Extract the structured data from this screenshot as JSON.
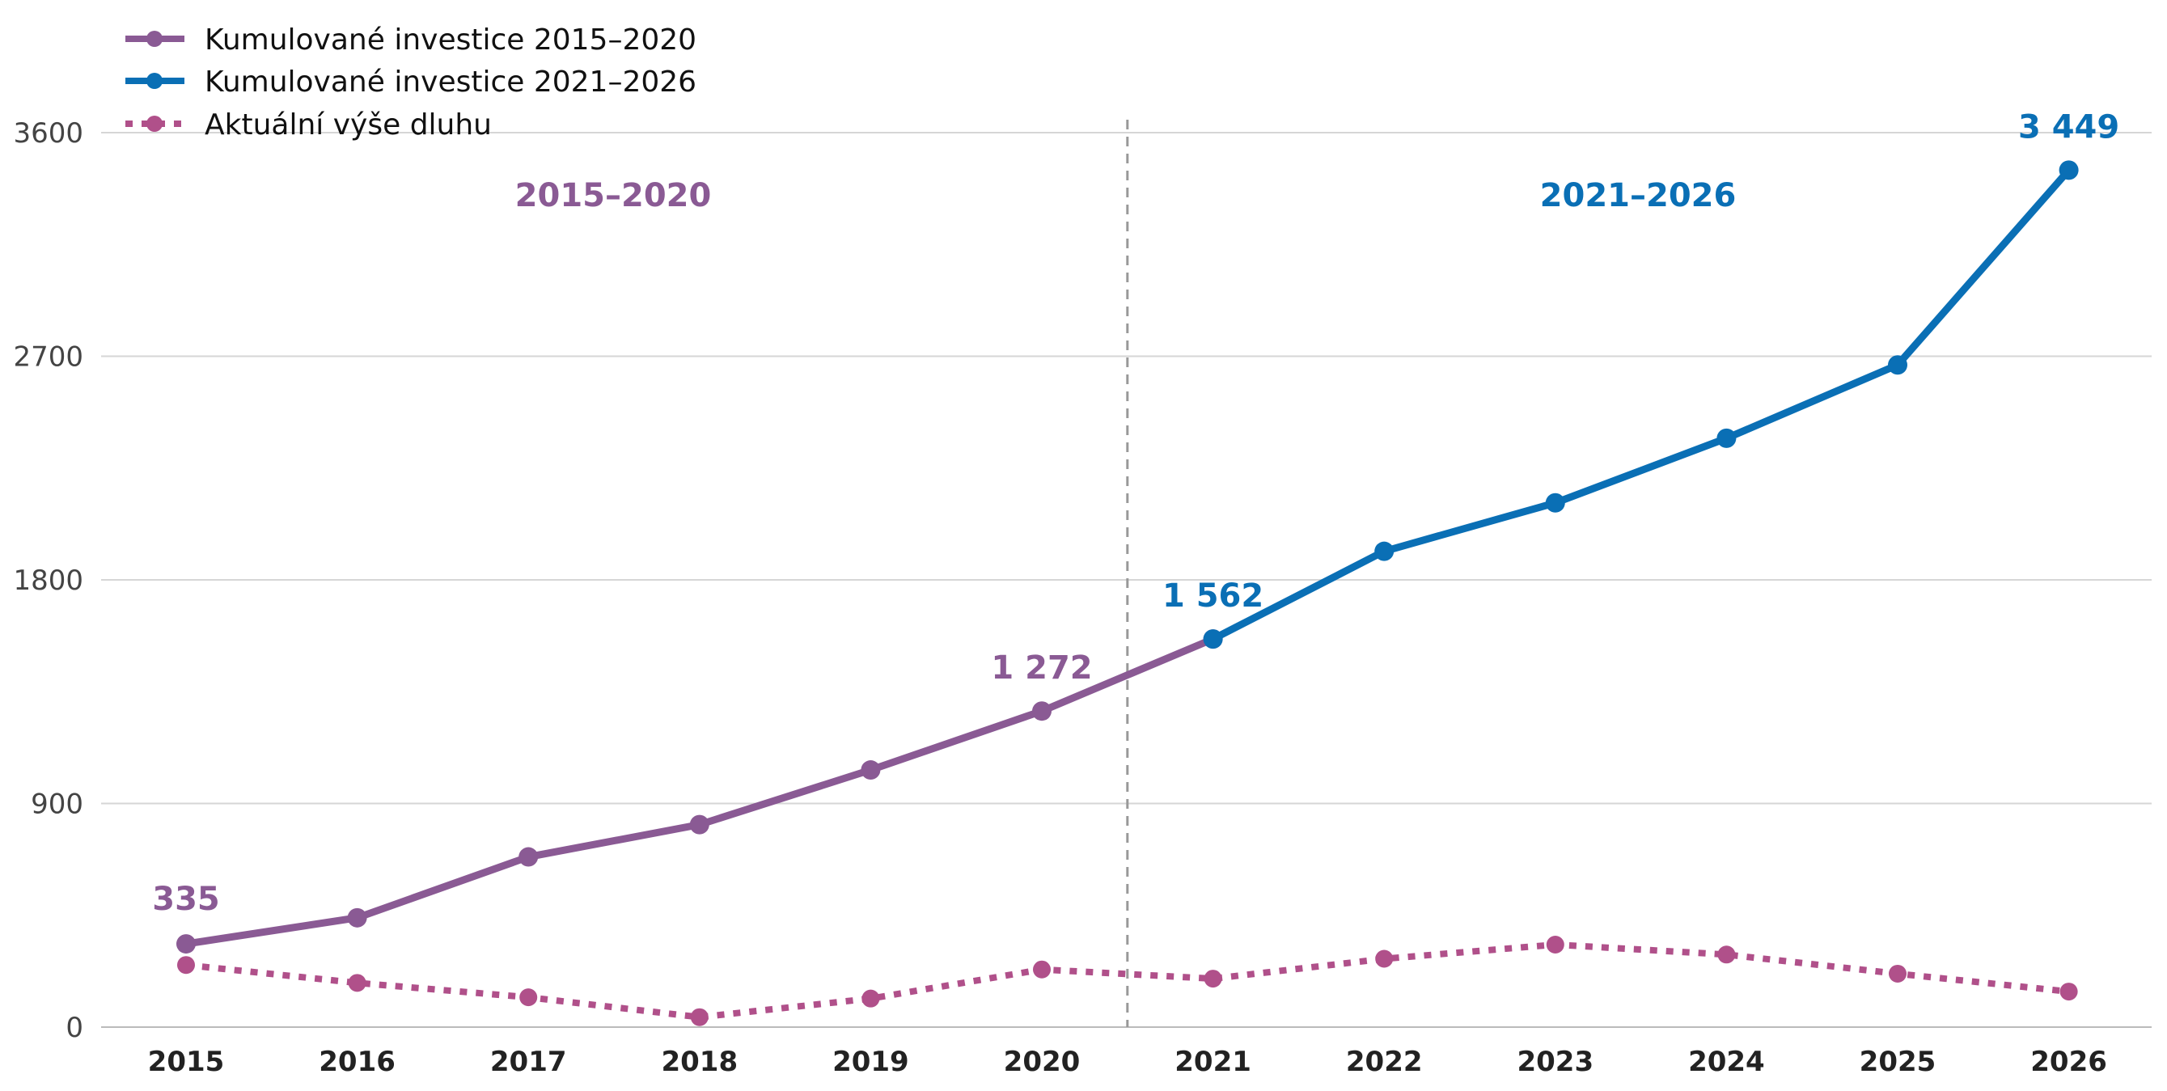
{
  "chart_data": {
    "type": "line",
    "categories": [
      "2015",
      "2016",
      "2017",
      "2018",
      "2019",
      "2020",
      "2021",
      "2022",
      "2023",
      "2024",
      "2025",
      "2026"
    ],
    "series": [
      {
        "name": "Kumulované investice 2015–2020",
        "color": "#8a5a94",
        "style": "solid",
        "x": [
          "2015",
          "2016",
          "2017",
          "2018",
          "2019",
          "2020",
          "2021"
        ],
        "values": [
          335,
          440,
          685,
          815,
          1035,
          1272,
          1562
        ]
      },
      {
        "name": "Kumulované investice 2021–2026",
        "color": "#0a6fb5",
        "style": "solid",
        "x": [
          "2021",
          "2022",
          "2023",
          "2024",
          "2025",
          "2026"
        ],
        "values": [
          1562,
          1915,
          2110,
          2370,
          2665,
          3449
        ]
      },
      {
        "name": "Aktuální výše dluhu",
        "color": "#b0508a",
        "style": "dotted",
        "x": [
          "2015",
          "2016",
          "2017",
          "2018",
          "2019",
          "2020",
          "2021",
          "2022",
          "2023",
          "2024",
          "2025",
          "2026"
        ],
        "values": [
          250,
          178,
          120,
          40,
          115,
          232,
          195,
          275,
          332,
          292,
          215,
          143
        ]
      }
    ],
    "point_labels": [
      {
        "series": 0,
        "x": "2015",
        "text": "335"
      },
      {
        "series": 0,
        "x": "2020",
        "text": "1 272"
      },
      {
        "series": 1,
        "x": "2021",
        "text": "1 562"
      },
      {
        "series": 1,
        "x": "2026",
        "text": "3 449"
      }
    ],
    "annotations": [
      {
        "text": "2015–2020",
        "color": "#8a5a94"
      },
      {
        "text": "2021–2026",
        "color": "#0a6fb5"
      }
    ],
    "divider_after": "2020",
    "yticks": [
      0,
      900,
      1800,
      2700,
      3600
    ],
    "ylim": [
      0,
      3600
    ],
    "grid": "horizontal",
    "legend_position": "top-left"
  }
}
